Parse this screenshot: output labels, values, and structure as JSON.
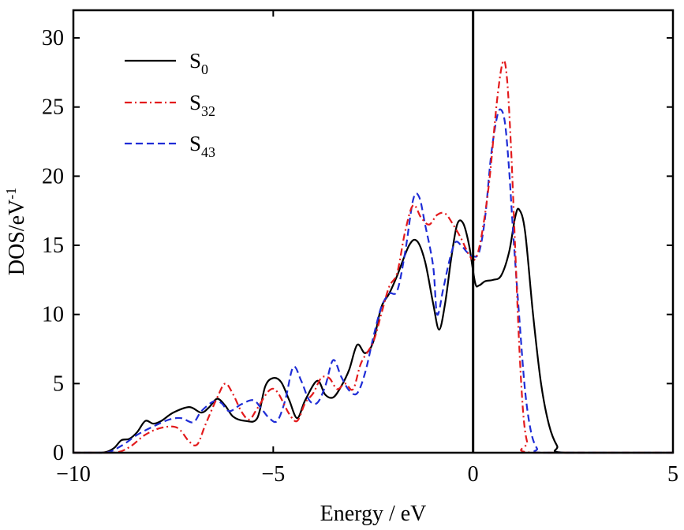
{
  "chart_data": {
    "type": "line",
    "xlabel": "Energy / eV",
    "ylabel_base": "DOS/eV",
    "ylabel_sup": "-1",
    "xlim": [
      -10,
      5
    ],
    "ylim": [
      0,
      32
    ],
    "xticks": [
      -10,
      -5,
      0,
      5
    ],
    "yticks": [
      0,
      5,
      10,
      15,
      20,
      25,
      30
    ],
    "xtick_labels": [
      "−10",
      "−5",
      "0",
      "5"
    ],
    "ytick_labels": [
      "0",
      "5",
      "10",
      "15",
      "20",
      "25",
      "30"
    ],
    "grid": false,
    "legend_position": "top-left",
    "vertical_line_x": 0,
    "series": [
      {
        "name_base": "S",
        "name_sub": "0",
        "color": "#000000",
        "dash": "solid",
        "points": [
          [
            -10,
            0
          ],
          [
            -9.3,
            0
          ],
          [
            -9.0,
            0.3
          ],
          [
            -8.8,
            0.9
          ],
          [
            -8.6,
            1.0
          ],
          [
            -8.4,
            1.5
          ],
          [
            -8.2,
            2.3
          ],
          [
            -8.0,
            2.1
          ],
          [
            -7.8,
            2.3
          ],
          [
            -7.5,
            2.9
          ],
          [
            -7.1,
            3.3
          ],
          [
            -6.8,
            2.9
          ],
          [
            -6.6,
            3.3
          ],
          [
            -6.4,
            3.9
          ],
          [
            -6.2,
            3.4
          ],
          [
            -6.0,
            2.6
          ],
          [
            -5.7,
            2.3
          ],
          [
            -5.4,
            2.5
          ],
          [
            -5.2,
            4.8
          ],
          [
            -5.0,
            5.4
          ],
          [
            -4.8,
            5.1
          ],
          [
            -4.6,
            3.8
          ],
          [
            -4.4,
            2.5
          ],
          [
            -4.2,
            3.8
          ],
          [
            -3.9,
            5.2
          ],
          [
            -3.7,
            4.2
          ],
          [
            -3.5,
            4.0
          ],
          [
            -3.3,
            4.8
          ],
          [
            -3.1,
            6.0
          ],
          [
            -2.9,
            7.8
          ],
          [
            -2.7,
            7.2
          ],
          [
            -2.5,
            8.0
          ],
          [
            -2.3,
            10.5
          ],
          [
            -2.1,
            11.5
          ],
          [
            -1.9,
            12.8
          ],
          [
            -1.6,
            15.0
          ],
          [
            -1.4,
            15.3
          ],
          [
            -1.2,
            13.8
          ],
          [
            -1.0,
            10.8
          ],
          [
            -0.85,
            8.9
          ],
          [
            -0.7,
            10.8
          ],
          [
            -0.55,
            14.0
          ],
          [
            -0.4,
            16.5
          ],
          [
            -0.25,
            16.6
          ],
          [
            -0.1,
            15.0
          ],
          [
            0.05,
            12.3
          ],
          [
            0.15,
            12.1
          ],
          [
            0.3,
            12.4
          ],
          [
            0.5,
            12.5
          ],
          [
            0.7,
            12.8
          ],
          [
            0.9,
            14.5
          ],
          [
            1.05,
            17.0
          ],
          [
            1.15,
            17.6
          ],
          [
            1.3,
            16.0
          ],
          [
            1.5,
            10.0
          ],
          [
            1.7,
            5.0
          ],
          [
            1.9,
            2.0
          ],
          [
            2.1,
            0.5
          ],
          [
            2.3,
            0
          ],
          [
            5,
            0
          ]
        ]
      },
      {
        "name_base": "S",
        "name_sub": "32",
        "color": "#e31a1c",
        "dash": "dashdot",
        "points": [
          [
            -10,
            0
          ],
          [
            -9.0,
            0
          ],
          [
            -8.6,
            0.4
          ],
          [
            -8.2,
            1.3
          ],
          [
            -7.8,
            1.8
          ],
          [
            -7.4,
            1.8
          ],
          [
            -7.1,
            0.8
          ],
          [
            -6.9,
            0.6
          ],
          [
            -6.7,
            2.0
          ],
          [
            -6.4,
            4.0
          ],
          [
            -6.2,
            5.0
          ],
          [
            -6.0,
            4.2
          ],
          [
            -5.8,
            3.0
          ],
          [
            -5.6,
            2.4
          ],
          [
            -5.4,
            3.2
          ],
          [
            -5.1,
            4.5
          ],
          [
            -4.9,
            4.4
          ],
          [
            -4.6,
            2.8
          ],
          [
            -4.4,
            2.3
          ],
          [
            -4.2,
            3.6
          ],
          [
            -4.0,
            4.3
          ],
          [
            -3.8,
            5.4
          ],
          [
            -3.6,
            5.4
          ],
          [
            -3.4,
            4.6
          ],
          [
            -3.2,
            5.0
          ],
          [
            -3.0,
            4.6
          ],
          [
            -2.8,
            6.5
          ],
          [
            -2.5,
            8.0
          ],
          [
            -2.3,
            10.0
          ],
          [
            -2.1,
            12.0
          ],
          [
            -1.9,
            13.0
          ],
          [
            -1.7,
            16.0
          ],
          [
            -1.5,
            17.9
          ],
          [
            -1.3,
            17.0
          ],
          [
            -1.1,
            16.5
          ],
          [
            -0.9,
            17.2
          ],
          [
            -0.7,
            17.3
          ],
          [
            -0.5,
            16.5
          ],
          [
            -0.3,
            15.5
          ],
          [
            -0.1,
            14.3
          ],
          [
            0.05,
            14.0
          ],
          [
            0.2,
            15.5
          ],
          [
            0.4,
            19.5
          ],
          [
            0.6,
            25.5
          ],
          [
            0.75,
            28.3
          ],
          [
            0.85,
            27.0
          ],
          [
            0.95,
            22.0
          ],
          [
            1.05,
            15.0
          ],
          [
            1.15,
            8.0
          ],
          [
            1.25,
            3.0
          ],
          [
            1.35,
            0.8
          ],
          [
            1.5,
            0
          ],
          [
            5,
            0
          ]
        ]
      },
      {
        "name_base": "S",
        "name_sub": "43",
        "color": "#1f2dd6",
        "dash": "dashed",
        "points": [
          [
            -10,
            0
          ],
          [
            -9.2,
            0
          ],
          [
            -8.8,
            0.5
          ],
          [
            -8.4,
            1.3
          ],
          [
            -8.0,
            1.9
          ],
          [
            -7.6,
            2.4
          ],
          [
            -7.3,
            2.5
          ],
          [
            -7.0,
            2.2
          ],
          [
            -6.8,
            3.0
          ],
          [
            -6.5,
            3.7
          ],
          [
            -6.3,
            3.6
          ],
          [
            -6.1,
            3.0
          ],
          [
            -5.8,
            3.5
          ],
          [
            -5.5,
            3.8
          ],
          [
            -5.3,
            3.2
          ],
          [
            -5.1,
            2.5
          ],
          [
            -4.9,
            2.3
          ],
          [
            -4.7,
            3.8
          ],
          [
            -4.5,
            6.2
          ],
          [
            -4.3,
            5.2
          ],
          [
            -4.1,
            3.8
          ],
          [
            -3.9,
            3.6
          ],
          [
            -3.7,
            4.8
          ],
          [
            -3.5,
            6.7
          ],
          [
            -3.3,
            5.5
          ],
          [
            -3.1,
            4.5
          ],
          [
            -2.9,
            4.3
          ],
          [
            -2.7,
            5.8
          ],
          [
            -2.5,
            8.3
          ],
          [
            -2.3,
            10.5
          ],
          [
            -2.1,
            11.5
          ],
          [
            -1.9,
            11.7
          ],
          [
            -1.7,
            14.5
          ],
          [
            -1.5,
            18.3
          ],
          [
            -1.35,
            18.5
          ],
          [
            -1.2,
            16.5
          ],
          [
            -1.0,
            13.5
          ],
          [
            -0.9,
            10.0
          ],
          [
            -0.75,
            11.8
          ],
          [
            -0.6,
            13.8
          ],
          [
            -0.45,
            15.2
          ],
          [
            -0.3,
            15.0
          ],
          [
            -0.15,
            14.5
          ],
          [
            0.0,
            14.2
          ],
          [
            0.15,
            14.5
          ],
          [
            0.3,
            17.0
          ],
          [
            0.45,
            21.5
          ],
          [
            0.6,
            24.3
          ],
          [
            0.7,
            24.8
          ],
          [
            0.8,
            23.8
          ],
          [
            0.9,
            20.5
          ],
          [
            1.0,
            16.0
          ],
          [
            1.15,
            10.0
          ],
          [
            1.3,
            4.5
          ],
          [
            1.45,
            1.5
          ],
          [
            1.6,
            0.3
          ],
          [
            1.75,
            0
          ],
          [
            5,
            0
          ]
        ]
      }
    ]
  }
}
